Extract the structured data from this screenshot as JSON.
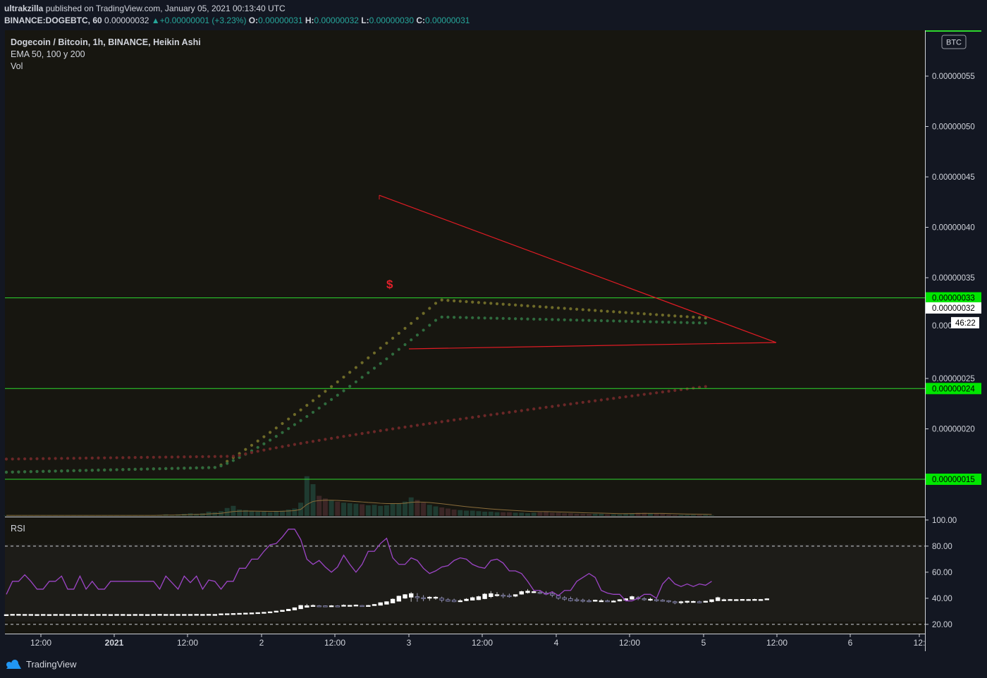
{
  "publish": {
    "author": "ultrakzilla",
    "text": "published on TradingView.com, January 05, 2021 00:13:40 UTC"
  },
  "quote": {
    "symbol": "BINANCE:DOGEBTC, 60",
    "last": "0.00000032",
    "change": "+0.00000001 (+3.23%)",
    "open_label": "O:",
    "open": "0.00000031",
    "high_label": "H:",
    "high": "0.00000032",
    "low_label": "L:",
    "low": "0.00000030",
    "close_label": "C:",
    "close": "0.00000031"
  },
  "legend": {
    "title": "Dogecoin / Bitcoin, 1h, BINANCE, Heikin Ashi",
    "ema": "EMA 50, 100 y 200",
    "vol": "Vol",
    "rsi": "RSI"
  },
  "currency_badge": "BTC",
  "countdown": "46:22",
  "footer_brand": "TradingView",
  "colors": {
    "background": "#131722",
    "chart_bg": "#171610",
    "hline": "#2ed82e",
    "trendline": "#e01b24",
    "rsi": "#9c45c6",
    "ema50": "#6e6a28",
    "ema100": "#2f6b3e",
    "ema200": "#6b2727",
    "signal": "#e0202a"
  },
  "chart_data": {
    "type": "candlestick",
    "price_axis": {
      "ticks": [
        5.5e-07,
        5e-07,
        4.5e-07,
        4e-07,
        3.5e-07,
        2.5e-07,
        2e-07
      ],
      "tick_labels": [
        "0.00000055",
        "0.00000050",
        "0.00000045",
        "0.00000040",
        "0.00000035",
        "0.00000025",
        "0.00000020"
      ],
      "range": [
        1.22e-07,
        5.85e-07
      ]
    },
    "time_axis": {
      "labels": [
        "12:00",
        "2021",
        "12:00",
        "2",
        "12:00",
        "3",
        "12:00",
        "4",
        "12:00",
        "5",
        "12:00",
        "6",
        "12:"
      ],
      "bold": [
        false,
        true,
        false,
        false,
        false,
        false,
        false,
        false,
        false,
        false,
        false,
        false,
        false
      ]
    },
    "horizontal_lines": [
      {
        "value": 3.3e-07,
        "label": "0.00000033"
      },
      {
        "value": 2.4e-07,
        "label": "0.00000024"
      },
      {
        "value": 1.5e-07,
        "label": "0.00000015"
      }
    ],
    "current_price": {
      "value": 3.2e-07,
      "label": "0.00000032"
    },
    "partial_axis_label": "0.000",
    "signal_marker": "$",
    "rsi": {
      "tick_labels": [
        "100.00",
        "80.00",
        "60.00",
        "40.00",
        "20.00"
      ],
      "levels": [
        80,
        20
      ],
      "range": [
        14,
        101
      ],
      "values": [
        43,
        53,
        53,
        58,
        53,
        47,
        47,
        53,
        53,
        57,
        47,
        47,
        57,
        47,
        53,
        47,
        47,
        53,
        53,
        53,
        53,
        53,
        53,
        53,
        53,
        47,
        57,
        52,
        47,
        57,
        52,
        57,
        47,
        54,
        53,
        47,
        53,
        53,
        63,
        63,
        70,
        70,
        76,
        81,
        82,
        87,
        93,
        93,
        85,
        70,
        66,
        69,
        64,
        60,
        64,
        73,
        66,
        60,
        66,
        76,
        76,
        82,
        86,
        71,
        66,
        66,
        71,
        69,
        63,
        59,
        61,
        64,
        65,
        69,
        71,
        70,
        66,
        64,
        63,
        69,
        70,
        67,
        61,
        61,
        59,
        53,
        46,
        46,
        43,
        45,
        42,
        46,
        46,
        53,
        56,
        59,
        56,
        46,
        44,
        43,
        43,
        38,
        38,
        40,
        43,
        43,
        40,
        51,
        56,
        51,
        49,
        51,
        49,
        51,
        50,
        53
      ]
    },
    "series_ema": [
      {
        "name": "EMA 50",
        "start": 1.57e-07,
        "plateau": 3.28e-07,
        "end": 3.1e-07
      },
      {
        "name": "EMA 100",
        "start": 1.57e-07,
        "plateau": 3.11e-07,
        "end": 3.05e-07
      },
      {
        "name": "EMA 200",
        "start": 1.7e-07,
        "end": 2.42e-07
      }
    ],
    "volume": [
      1,
      1,
      1,
      1,
      1,
      1,
      1,
      1,
      1,
      1,
      1,
      1,
      1,
      1,
      1,
      1,
      1,
      1,
      1,
      1,
      1,
      1,
      1,
      1,
      1,
      2,
      3,
      2,
      3,
      4,
      5,
      4,
      5,
      8,
      7,
      9,
      15,
      19,
      12,
      11,
      9,
      8,
      8,
      7,
      9,
      10,
      12,
      14,
      25,
      75,
      60,
      38,
      33,
      30,
      27,
      25,
      24,
      23,
      22,
      20,
      21,
      19,
      20,
      23,
      24,
      27,
      35,
      30,
      25,
      21,
      18,
      16,
      14,
      12,
      11,
      10,
      10,
      9,
      8,
      8,
      7,
      7,
      7,
      6,
      6,
      5,
      6,
      7,
      8,
      6,
      6,
      5,
      5,
      4,
      4,
      4,
      4,
      4,
      3,
      3,
      3,
      4,
      5,
      6,
      6,
      5,
      5,
      4,
      3,
      2,
      2,
      2,
      2,
      2,
      2,
      1
    ]
  }
}
